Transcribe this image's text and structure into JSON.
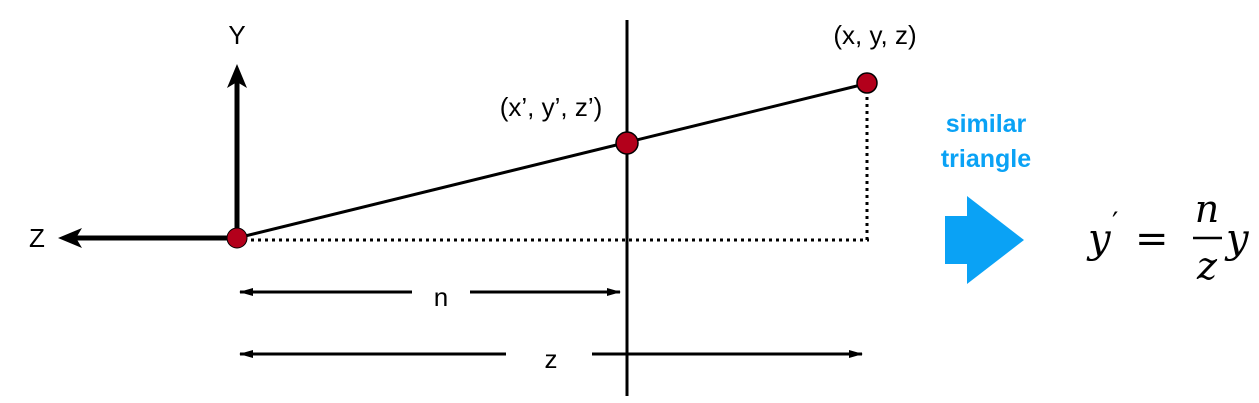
{
  "labels": {
    "y_axis": "Y",
    "z_axis": "Z",
    "point_far": "(x, y, z)",
    "point_near": "(x’, y’, z’)",
    "dim_n": "n",
    "dim_z": "z"
  },
  "callout": {
    "line1": "similar",
    "line2": "triangle",
    "color": "#0aa2f5"
  },
  "formula": {
    "lhs": "y",
    "prime": "′",
    "equals": "=",
    "numerator": "n",
    "denominator": "z",
    "rhs": "y"
  },
  "colors": {
    "point_fill": "#b3001b",
    "line": "#000000"
  }
}
